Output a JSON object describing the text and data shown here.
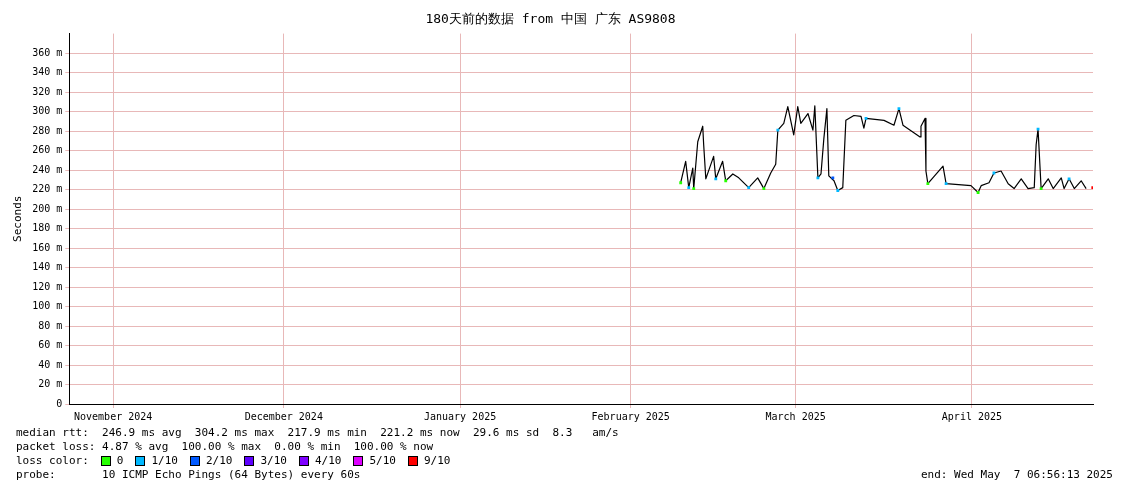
{
  "chart_data": {
    "type": "line",
    "title": "180天前的数据 from 中国 广东 AS9808",
    "ylabel": "Seconds",
    "legend_title": "loss color:",
    "legend": "bottom",
    "grid": true,
    "xlim": [
      "2024-11-08T06:56",
      "2025-05-07T06:56"
    ],
    "xticks": [
      {
        "value": "2024-11-16",
        "label": "November 2024"
      },
      {
        "value": "2024-12-16",
        "label": "December 2024"
      },
      {
        "value": "2025-01-16",
        "label": "January 2025"
      },
      {
        "value": "2025-02-15",
        "label": "February 2025"
      },
      {
        "value": "2025-03-16",
        "label": "March 2025"
      },
      {
        "value": "2025-04-16",
        "label": "April 2025"
      }
    ],
    "ylim": [
      0,
      380
    ],
    "yticks": [
      0,
      {
        "value": 20,
        "label": "20 m"
      },
      {
        "value": 40,
        "label": "40 m"
      },
      {
        "value": 60,
        "label": "60 m"
      },
      {
        "value": 80,
        "label": "80 m"
      },
      {
        "value": 100,
        "label": "100 m"
      },
      {
        "value": 120,
        "label": "120 m"
      },
      {
        "value": 140,
        "label": "140 m"
      },
      {
        "value": 160,
        "label": "160 m"
      },
      {
        "value": 180,
        "label": "180 m"
      },
      {
        "value": 200,
        "label": "200 m"
      },
      {
        "value": 220,
        "label": "220 m"
      },
      {
        "value": 240,
        "label": "240 m"
      },
      {
        "value": 260,
        "label": "260 m"
      },
      {
        "value": 280,
        "label": "280 m"
      },
      {
        "value": 300,
        "label": "300 m"
      },
      {
        "value": 320,
        "label": "320 m"
      },
      {
        "value": 340,
        "label": "340 m"
      },
      {
        "value": 360,
        "label": "360 m"
      }
    ],
    "series": [
      {
        "color": "#000000",
        "x": [
          "2025-02-23T19:00",
          "2025-02-24T16:00",
          "2025-02-25T05:00",
          "2025-02-25T22:00",
          "2025-02-26T02:00",
          "2025-02-26T19:00",
          "2025-02-27T16:00",
          "2025-02-27T20:00",
          "2025-02-28T05:00",
          "2025-03-01T14:00",
          "2025-03-01T23:00",
          "2025-03-03T04:00",
          "2025-03-03T17:00",
          "2025-03-04T23:00",
          "2025-03-06T00:00",
          "2025-03-07T18:00",
          "2025-03-09T08:00",
          "2025-03-10T10:00",
          "2025-03-11T15:00",
          "2025-03-12T12:00",
          "2025-03-12T21:00",
          "2025-03-13T22:00",
          "2025-03-14T15:00",
          "2025-03-15T16:00",
          "2025-03-16T09:00",
          "2025-03-16T22:00",
          "2025-03-18T04:00",
          "2025-03-19T01:00",
          "2025-03-19T09:00",
          "2025-03-19T22:00",
          "2025-03-20T11:00",
          "2025-03-20T23:00",
          "2025-03-21T12:00",
          "2025-03-21T20:00",
          "2025-03-22T18:00",
          "2025-03-23T10:00",
          "2025-03-24T07:00",
          "2025-03-24T20:00",
          "2025-03-26T06:00",
          "2025-03-27T12:00",
          "2025-03-28T00:00",
          "2025-03-28T09:00",
          "2025-03-31T13:00",
          "2025-04-02T07:00",
          "2025-04-03T04:00",
          "2025-04-03T21:00",
          "2025-04-06T21:00",
          "2025-04-07T01:00",
          "2025-04-07T18:00",
          "2025-04-07T22:00",
          "2025-04-08T06:00",
          "2025-04-10T22:00",
          "2025-04-11T11:00",
          "2025-04-15T20:00",
          "2025-04-17T02:00",
          "2025-04-17T15:00",
          "2025-04-19T00:00",
          "2025-04-19T21:00",
          "2025-04-21T03:00",
          "2025-04-22T09:00",
          "2025-04-23T10:00",
          "2025-04-24T16:00",
          "2025-04-25T21:00",
          "2025-04-26T23:00",
          "2025-04-27T07:00",
          "2025-04-27T15:00",
          "2025-04-28T04:00",
          "2025-04-29T10:00",
          "2025-04-30T07:00",
          "2025-05-01T17:00",
          "2025-05-02T05:00",
          "2025-05-03T02:00",
          "2025-05-04T00:00",
          "2025-05-05T05:00",
          "2025-05-06T02:00"
        ],
        "values": [
          227,
          249,
          222,
          242,
          221,
          269,
          285,
          266,
          231,
          254,
          231,
          249,
          229,
          236,
          232,
          222,
          232,
          221,
          237,
          246,
          281,
          288,
          305,
          276,
          305,
          288,
          298,
          281,
          306,
          232,
          236,
          272,
          303,
          234,
          229,
          219,
          222,
          291,
          296,
          295,
          283,
          293,
          291,
          286,
          303,
          286,
          274,
          285,
          293,
          239,
          226,
          244,
          226,
          224,
          217,
          224,
          227,
          237,
          239,
          226,
          221,
          231,
          221,
          222,
          266,
          282,
          221,
          231,
          221,
          232,
          221,
          231,
          221,
          229,
          221
        ]
      },
      {
        "name": "0",
        "type": "scatter",
        "marker": "square",
        "color": "#26ff00",
        "x": [
          "2025-02-23T19:00",
          "2025-02-26T02:00",
          "2025-03-03T17:00",
          "2025-03-10T10:00",
          "2025-04-08T06:00",
          "2025-04-17T02:00",
          "2025-04-28T04:00"
        ],
        "values": [
          227,
          221,
          229,
          221,
          226,
          217,
          221
        ]
      },
      {
        "name": "1/10",
        "type": "scatter",
        "marker": "square",
        "color": "#00b8ff",
        "x": [
          "2025-02-25T05:00",
          "2025-03-01T23:00",
          "2025-03-07T18:00",
          "2025-03-12T21:00",
          "2025-03-19T22:00",
          "2025-03-23T10:00",
          "2025-03-28T09:00",
          "2025-04-03T04:00",
          "2025-04-11T11:00",
          "2025-04-19T21:00",
          "2025-04-27T15:00",
          "2025-05-03T02:00"
        ],
        "values": [
          222,
          231,
          222,
          281,
          232,
          219,
          293,
          303,
          226,
          237,
          282,
          231
        ]
      },
      {
        "name": "2/10",
        "type": "scatter",
        "marker": "square",
        "color": "#0059ff",
        "x": [
          "2025-03-22T13:00"
        ],
        "values": [
          232
        ]
      },
      {
        "name": "3/10",
        "type": "scatter",
        "marker": "square",
        "color": "#5e00ff"
      },
      {
        "name": "4/10",
        "type": "scatter",
        "marker": "square",
        "color": "#7e00ff"
      },
      {
        "name": "5/10",
        "type": "scatter",
        "marker": "square",
        "color": "#dd00ff"
      },
      {
        "name": "9/10",
        "type": "scatter",
        "marker": "square",
        "color": "#ff0000",
        "x": [
          "2025-05-07T06:00"
        ],
        "values": [
          222
        ]
      }
    ],
    "annotations": [
      "median rtt:  246.9 ms avg  304.2 ms max  217.9 ms min  221.2 ms now  29.6 ms sd  8.3   am/s",
      "packet loss: 4.87 % avg  100.00 % max  0.00 % min  100.00 % now",
      "probe:       10 ICMP Echo Pings (64 Bytes) every 60s",
      "end: Wed May  7 06:56:13 2025"
    ]
  }
}
